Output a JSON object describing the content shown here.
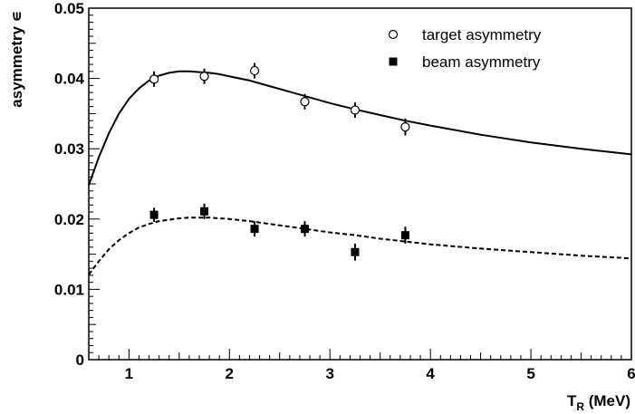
{
  "chart_data": {
    "type": "scatter",
    "xlabel": "T",
    "xlabel_subscript": "R",
    "xlabel_unit": " (MeV)",
    "ylabel": "asymmetry ∊",
    "xlim": [
      0.6,
      6.0
    ],
    "ylim": [
      0,
      0.05
    ],
    "x_ticks": [
      1,
      2,
      3,
      4,
      5,
      6
    ],
    "y_ticks": [
      0,
      0.01,
      0.02,
      0.03,
      0.04,
      0.05
    ],
    "y_tick_labels": [
      "0",
      "0.01",
      "0.02",
      "0.03",
      "0.04",
      "0.05"
    ],
    "legend_position": "top-right",
    "grid": false,
    "series": [
      {
        "name": "target asymmetry",
        "marker": "open-circle",
        "x": [
          1.25,
          1.75,
          2.25,
          2.75,
          3.25,
          3.75
        ],
        "y": [
          0.0399,
          0.0403,
          0.0411,
          0.0367,
          0.0355,
          0.0331
        ],
        "yerr": [
          0.0011,
          0.0011,
          0.0011,
          0.0011,
          0.0011,
          0.0012
        ]
      },
      {
        "name": "beam asymmetry",
        "marker": "filled-square",
        "x": [
          1.25,
          1.75,
          2.25,
          2.75,
          3.25,
          3.75
        ],
        "y": [
          0.0206,
          0.0211,
          0.0186,
          0.0186,
          0.0153,
          0.0177
        ],
        "yerr": [
          0.001,
          0.0011,
          0.0011,
          0.0011,
          0.0012,
          0.0012
        ]
      }
    ],
    "curves": [
      {
        "style": "solid",
        "x": [
          0.6,
          0.7,
          0.8,
          0.9,
          1.0,
          1.1,
          1.2,
          1.3,
          1.4,
          1.5,
          1.6,
          1.7,
          1.8,
          1.9,
          2.0,
          2.2,
          2.4,
          2.6,
          2.8,
          3.0,
          3.25,
          3.5,
          3.75,
          4.0,
          4.5,
          5.0,
          5.5,
          6.0
        ],
        "y": [
          0.0248,
          0.0288,
          0.0322,
          0.035,
          0.0371,
          0.0386,
          0.0397,
          0.0404,
          0.0408,
          0.041,
          0.041,
          0.0409,
          0.0408,
          0.0406,
          0.0403,
          0.0397,
          0.0389,
          0.0381,
          0.0373,
          0.0365,
          0.0356,
          0.0348,
          0.034,
          0.0333,
          0.032,
          0.0309,
          0.03,
          0.0292
        ]
      },
      {
        "style": "dashed",
        "x": [
          0.6,
          0.7,
          0.8,
          0.9,
          1.0,
          1.1,
          1.2,
          1.3,
          1.4,
          1.5,
          1.6,
          1.7,
          1.8,
          1.9,
          2.0,
          2.2,
          2.4,
          2.6,
          2.8,
          3.0,
          3.25,
          3.5,
          3.75,
          4.0,
          4.5,
          5.0,
          5.5,
          6.0
        ],
        "y": [
          0.0121,
          0.014,
          0.0157,
          0.017,
          0.018,
          0.0188,
          0.0193,
          0.0197,
          0.0199,
          0.0201,
          0.0202,
          0.0202,
          0.0202,
          0.0201,
          0.02,
          0.0197,
          0.0193,
          0.0189,
          0.0185,
          0.0181,
          0.0177,
          0.0172,
          0.0168,
          0.0164,
          0.0158,
          0.0153,
          0.0148,
          0.0144
        ]
      }
    ]
  }
}
